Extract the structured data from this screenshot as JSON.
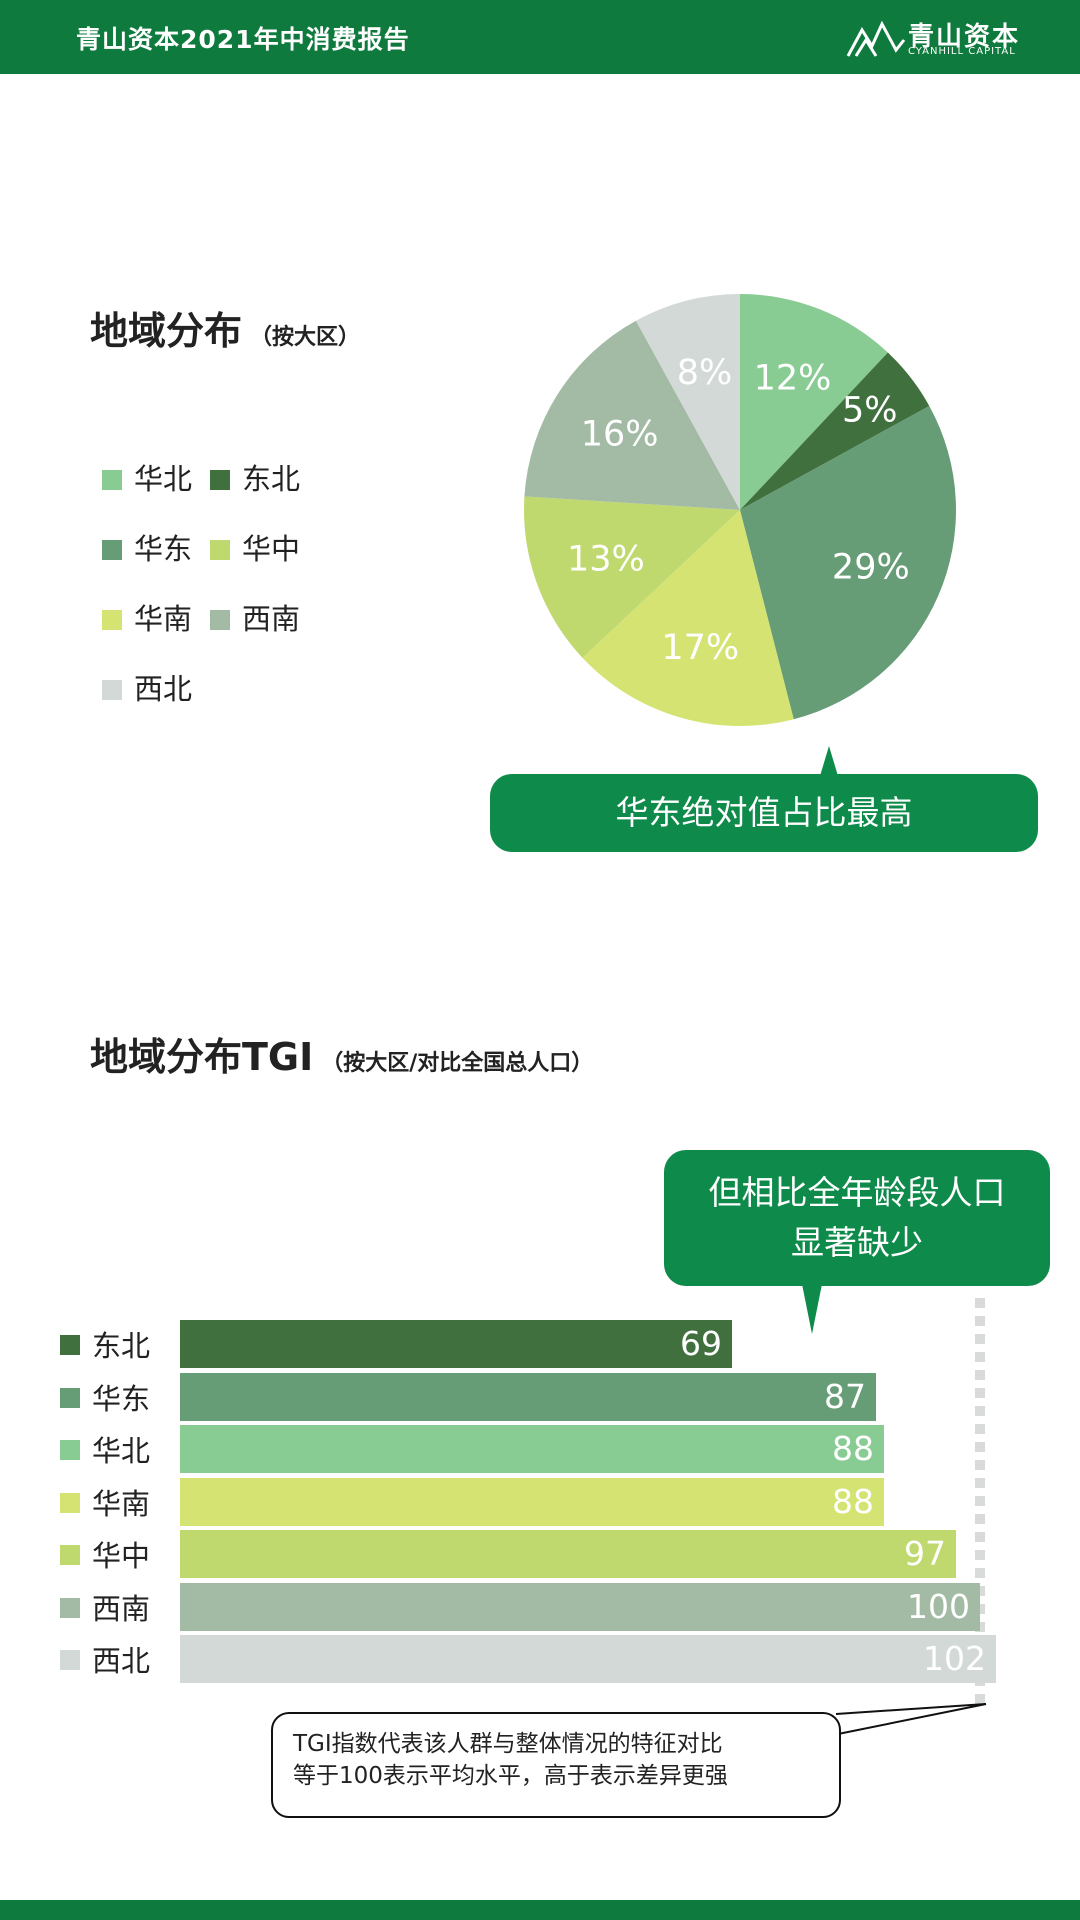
{
  "header": {
    "title": "青山资本2021年中消费报告",
    "logo_cn": "青山资本",
    "logo_en": "CYANHILL CAPITAL"
  },
  "colors": {
    "brand_green": "#0e7a3d",
    "bubble_green": "#0e8a4a",
    "华北": "#88cc93",
    "东北": "#41703f",
    "华东": "#669c76",
    "华中": "#c0d96f",
    "华南": "#d4e372",
    "西南": "#a3bba4",
    "西北": "#d3d9d6"
  },
  "section1": {
    "title": "地域分布",
    "note": "（按大区）",
    "callout": "华东绝对值占比最高"
  },
  "section2": {
    "title": "地域分布TGI",
    "note": "（按大区/对比全国总人口）",
    "callout_line1": "但相比全年龄段人口",
    "callout_line2": "显著缺少",
    "note_line1": "TGI指数代表该人群与整体情况的特征对比",
    "note_line2": "等于100表示平均水平，高于表示差异更强"
  },
  "chart_data": [
    {
      "type": "pie",
      "title": "地域分布",
      "legend": [
        "华北",
        "东北",
        "华东",
        "华中",
        "华南",
        "西南",
        "西北"
      ],
      "slices": [
        {
          "label": "华北",
          "value": 12,
          "display": "12%"
        },
        {
          "label": "东北",
          "value": 5,
          "display": "5%"
        },
        {
          "label": "华东",
          "value": 29,
          "display": "29%"
        },
        {
          "label": "华南",
          "value": 17,
          "display": "17%"
        },
        {
          "label": "华中",
          "value": 13,
          "display": "13%"
        },
        {
          "label": "西南",
          "value": 16,
          "display": "16%"
        },
        {
          "label": "西北",
          "value": 8,
          "display": "8%"
        }
      ]
    },
    {
      "type": "bar",
      "orientation": "horizontal",
      "title": "地域分布TGI",
      "categories": [
        "东北",
        "华东",
        "华北",
        "华南",
        "华中",
        "西南",
        "西北"
      ],
      "values": [
        69,
        87,
        88,
        88,
        97,
        100,
        102
      ],
      "reference_value": 100
    }
  ]
}
